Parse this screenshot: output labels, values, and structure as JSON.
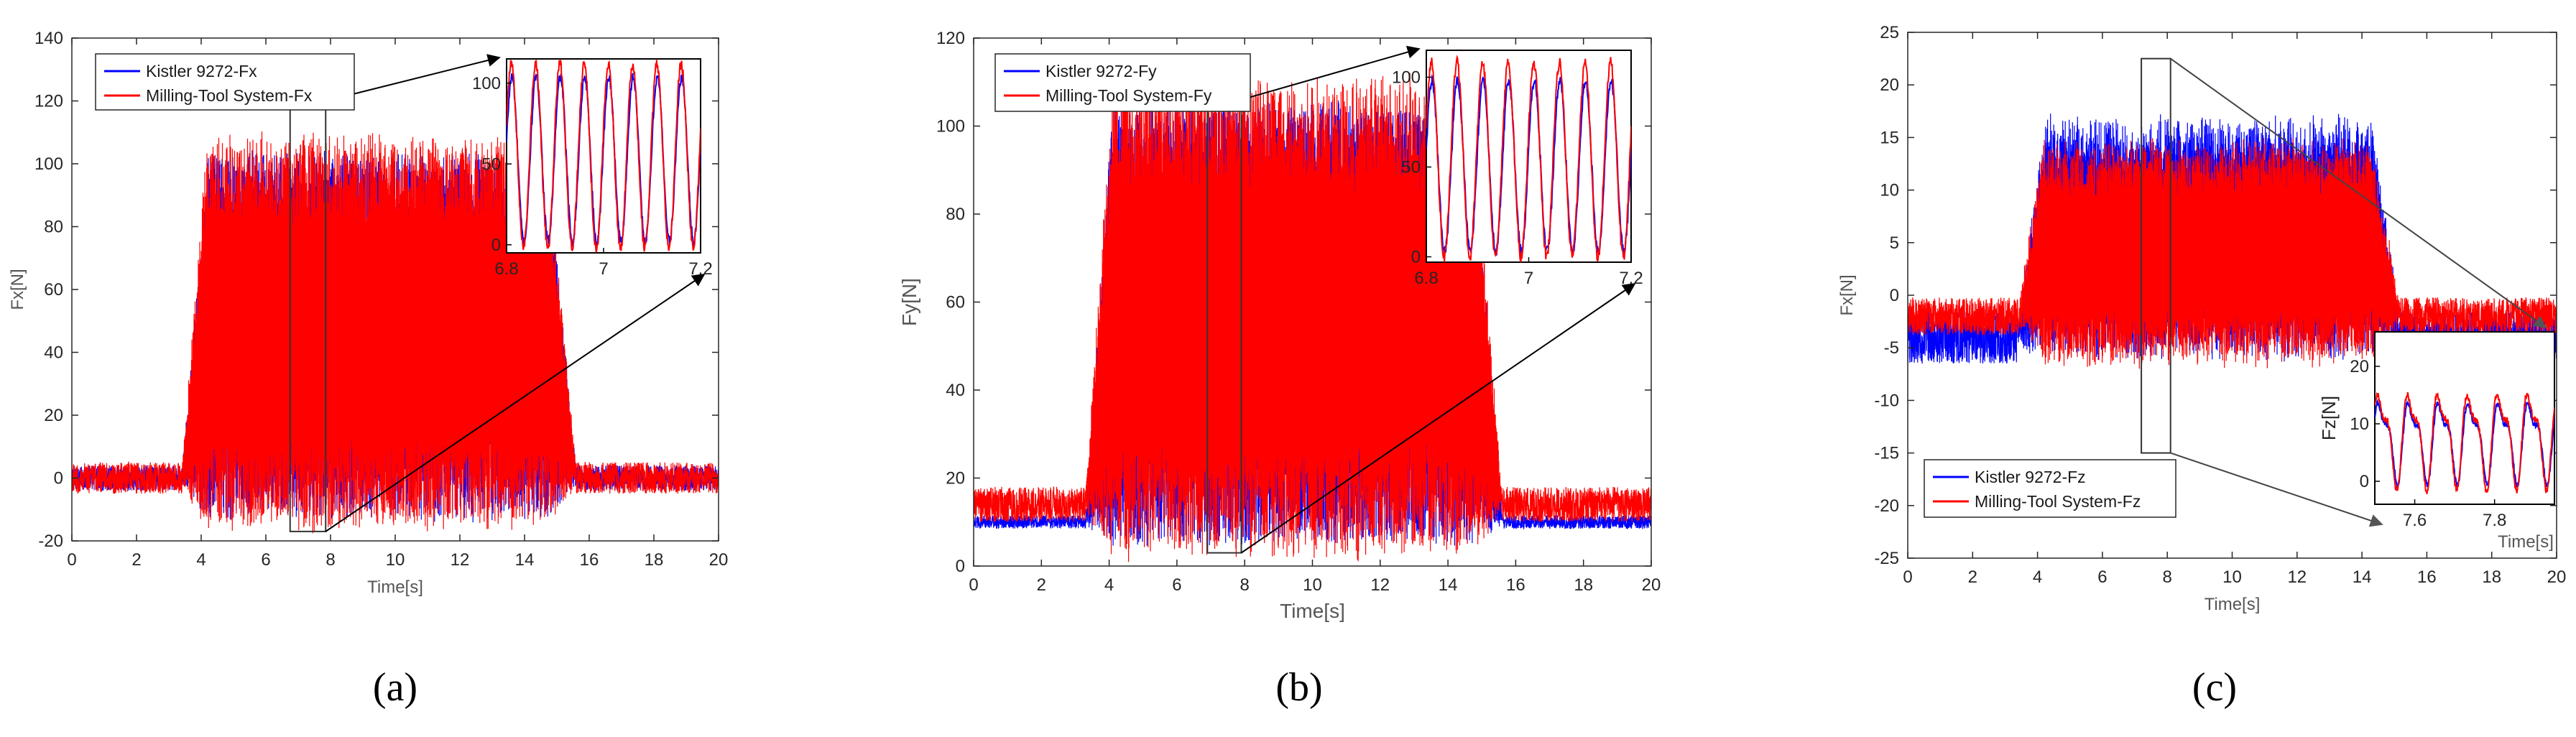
{
  "figure": {
    "panels": [
      {
        "label": "(a)",
        "ylabel": "Fx[N]",
        "xlabel": "Time[s]",
        "legend": [
          "Kistler 9272-Fx",
          "Milling-Tool System-Fx"
        ],
        "inset": {
          "xlabel": "",
          "ylabel": ""
        }
      },
      {
        "label": "(b)",
        "ylabel": "Fy[N]",
        "xlabel": "Time[s]",
        "legend": [
          "Kistler 9272-Fy",
          "Milling-Tool System-Fy"
        ],
        "inset": {
          "xlabel": "",
          "ylabel": ""
        }
      },
      {
        "label": "(c)",
        "ylabel": "Fx[N]",
        "xlabel": "Time[s]",
        "legend": [
          "Kistler 9272-Fz",
          "Milling-Tool System-Fz"
        ],
        "inset": {
          "xlabel": "Time[s]",
          "ylabel": "Fz[N]"
        }
      }
    ]
  },
  "chart_data": [
    {
      "type": "line",
      "title": "",
      "xlabel": "Time[s]",
      "ylabel": "Fx[N]",
      "xlim": [
        0,
        20
      ],
      "ylim": [
        -20,
        140
      ],
      "xticks": [
        0,
        2,
        4,
        6,
        8,
        10,
        12,
        14,
        16,
        18,
        20
      ],
      "yticks": [
        -20,
        0,
        20,
        40,
        60,
        80,
        100,
        120,
        140
      ],
      "legend_position": "top-left",
      "series": [
        {
          "name": "Kistler 9272-Fx",
          "color": "#0000ff",
          "baseline": 0,
          "noise": 4,
          "cut_start": 3.4,
          "cut_end": 15.6,
          "cut_low": -12,
          "cut_high": 103
        },
        {
          "name": "Milling-Tool System-Fx",
          "color": "#ff0000",
          "baseline": 0,
          "noise": 5,
          "cut_start": 3.4,
          "cut_end": 15.6,
          "cut_low": -15,
          "cut_high": 108
        }
      ],
      "zoom_window": {
        "x": [
          6.75,
          7.85
        ],
        "y": [
          -17,
          120
        ]
      },
      "inset": {
        "xlim": [
          6.8,
          7.2
        ],
        "ylim": [
          -5,
          115
        ],
        "xticks": [
          6.8,
          7,
          7.2
        ],
        "xtick_labels": [
          "6.8",
          "7",
          "7.2"
        ],
        "yticks": [
          0,
          50,
          100
        ],
        "ytick_labels": [
          "0",
          "50",
          "100"
        ],
        "cycles": 8,
        "blue_range": [
          2,
          104
        ],
        "red_range": [
          -2,
          112
        ]
      }
    },
    {
      "type": "line",
      "title": "",
      "xlabel": "Time[s]",
      "ylabel": "Fy[N]",
      "xlim": [
        0,
        20
      ],
      "ylim": [
        0,
        120
      ],
      "xticks": [
        0,
        2,
        4,
        6,
        8,
        10,
        12,
        14,
        16,
        18,
        20
      ],
      "yticks": [
        0,
        20,
        40,
        60,
        80,
        100,
        120
      ],
      "legend_position": "top-left",
      "series": [
        {
          "name": "Kistler 9272-Fy",
          "color": "#0000ff",
          "baseline": 10,
          "noise": 1.5,
          "cut_start": 3.3,
          "cut_end": 15.6,
          "cut_low": 5,
          "cut_high": 105
        },
        {
          "name": "Milling-Tool System-Fy",
          "color": "#ff0000",
          "baseline": 14,
          "noise": 4,
          "cut_start": 3.3,
          "cut_end": 15.6,
          "cut_low": 3,
          "cut_high": 110
        }
      ],
      "zoom_window": {
        "x": [
          6.9,
          7.9
        ],
        "y": [
          3,
          106
        ]
      },
      "inset": {
        "xlim": [
          6.8,
          7.2
        ],
        "ylim": [
          -3,
          115
        ],
        "xticks": [
          6.8,
          7,
          7.2
        ],
        "xtick_labels": [
          "6.8",
          "7",
          "7.2"
        ],
        "yticks": [
          0,
          50,
          100
        ],
        "ytick_labels": [
          "0",
          "50",
          "100"
        ],
        "cycles": 8,
        "blue_range": [
          3,
          98
        ],
        "red_range": [
          0,
          108
        ]
      }
    },
    {
      "type": "line",
      "title": "",
      "xlabel": "Time[s]",
      "ylabel": "Fx[N]",
      "xlim": [
        0,
        20
      ],
      "ylim": [
        -25,
        25
      ],
      "xticks": [
        0,
        2,
        4,
        6,
        8,
        10,
        12,
        14,
        16,
        18,
        20
      ],
      "yticks": [
        -25,
        -20,
        -15,
        -10,
        -5,
        0,
        5,
        10,
        15,
        20,
        25
      ],
      "legend_position": "bottom-left",
      "series": [
        {
          "name": "Kistler 9272-Fz",
          "color": "#0000ff",
          "baseline": -4,
          "noise": 2.5,
          "cut_start": 3.4,
          "cut_end": 15.2,
          "cut_low": -5,
          "cut_high": 16
        },
        {
          "name": "Milling-Tool System-Fz",
          "color": "#ff0000",
          "baseline": -2,
          "noise": 1.8,
          "cut_start": 3.4,
          "cut_end": 15.2,
          "cut_low": -6,
          "cut_high": 14
        }
      ],
      "zoom_window": {
        "x": [
          7.2,
          8.1
        ],
        "y": [
          -15,
          22.5
        ]
      },
      "inset": {
        "xlim": [
          7.5,
          7.95
        ],
        "ylim": [
          -4,
          26
        ],
        "xticks": [
          7.6,
          7.8
        ],
        "xtick_labels": [
          "7.6",
          "7.8"
        ],
        "yticks": [
          0,
          10,
          20
        ],
        "ytick_labels": [
          "0",
          "10",
          "20"
        ],
        "cycles": 6,
        "blue_range": [
          -1,
          16
        ],
        "red_range": [
          -2,
          18
        ]
      }
    }
  ]
}
